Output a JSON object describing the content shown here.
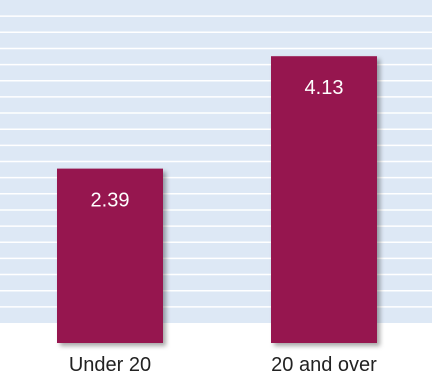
{
  "chart_data": {
    "type": "bar",
    "categories": [
      "Under 20",
      "20 and over"
    ],
    "values": [
      2.39,
      4.13
    ],
    "value_labels": [
      "2.39",
      "4.13"
    ],
    "title": "",
    "xlabel": "",
    "ylabel": "",
    "ylim": [
      0,
      5
    ],
    "grid": true,
    "legend": "none",
    "colors": {
      "bar": "#961650",
      "plot_background": "#dde8f5",
      "gridline": "#ffffff"
    }
  }
}
